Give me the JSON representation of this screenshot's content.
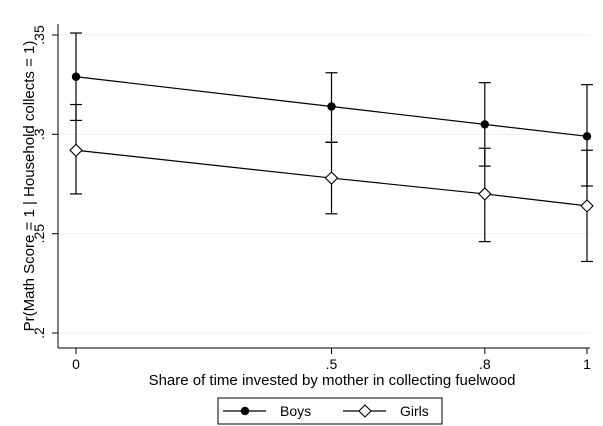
{
  "chart_data": {
    "type": "line",
    "title": "",
    "xlabel": "Share of time invested by mother in collecting fuelwood",
    "ylabel": "Pr(Math Score = 1 | Household collects = 1)",
    "x": [
      0,
      0.5,
      0.8,
      1
    ],
    "x_tick_labels": [
      "0",
      ".5",
      ".8",
      "1"
    ],
    "y_ticks": [
      0.2,
      0.25,
      0.3,
      0.35
    ],
    "y_tick_labels": [
      ".2",
      ".25",
      ".3",
      ".35"
    ],
    "xlim": [
      0,
      1
    ],
    "ylim": [
      0.2,
      0.35
    ],
    "grid": true,
    "legend_position": "bottom",
    "series": [
      {
        "name": "Boys",
        "marker": "filled-circle",
        "values": [
          0.329,
          0.314,
          0.305,
          0.299
        ],
        "ci_low": [
          0.307,
          0.296,
          0.284,
          0.274
        ],
        "ci_high": [
          0.351,
          0.331,
          0.326,
          0.325
        ]
      },
      {
        "name": "Girls",
        "marker": "hollow-diamond",
        "values": [
          0.292,
          0.278,
          0.27,
          0.264
        ],
        "ci_low": [
          0.27,
          0.26,
          0.246,
          0.236
        ],
        "ci_high": [
          0.315,
          0.296,
          0.293,
          0.292
        ]
      }
    ]
  }
}
